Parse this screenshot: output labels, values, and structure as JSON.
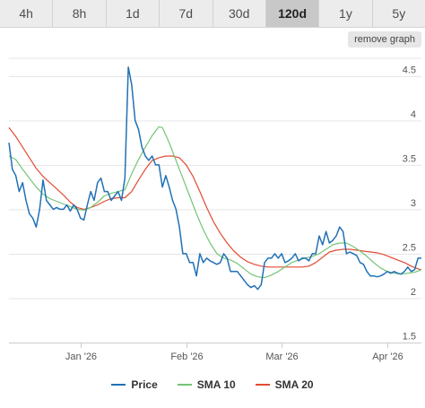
{
  "tabs": [
    {
      "label": "4h",
      "active": false
    },
    {
      "label": "8h",
      "active": false
    },
    {
      "label": "1d",
      "active": false
    },
    {
      "label": "7d",
      "active": false
    },
    {
      "label": "30d",
      "active": false
    },
    {
      "label": "120d",
      "active": true
    },
    {
      "label": "1y",
      "active": false
    },
    {
      "label": "5y",
      "active": false
    }
  ],
  "remove_graph_label": "remove graph",
  "chart_data": {
    "type": "line",
    "x_range": [
      "2025-12-11",
      "2026-04-11"
    ],
    "ylim": [
      1.5,
      4.7
    ],
    "y_ticks": [
      "1.5",
      "2",
      "2.5",
      "3",
      "3.5",
      "4",
      "4.5"
    ],
    "x_ticks": [
      {
        "label": "Jan '26",
        "date": "2026-01-01"
      },
      {
        "label": "Feb '26",
        "date": "2026-02-01"
      },
      {
        "label": "Mar '26",
        "date": "2026-03-01"
      },
      {
        "label": "Apr '26",
        "date": "2026-04-01"
      }
    ],
    "grid": true,
    "legend": "bottom",
    "series": [
      {
        "name": "Price",
        "color": "#2171b5",
        "points": [
          [
            "2025-12-11",
            3.75
          ],
          [
            "2025-12-12",
            3.45
          ],
          [
            "2025-12-13",
            3.38
          ],
          [
            "2025-12-14",
            3.2
          ],
          [
            "2025-12-15",
            3.3
          ],
          [
            "2025-12-16",
            3.1
          ],
          [
            "2025-12-17",
            2.95
          ],
          [
            "2025-12-18",
            2.9
          ],
          [
            "2025-12-19",
            2.8
          ],
          [
            "2025-12-20",
            3.0
          ],
          [
            "2025-12-21",
            3.33
          ],
          [
            "2025-12-22",
            3.1
          ],
          [
            "2025-12-23",
            3.05
          ],
          [
            "2025-12-24",
            3.0
          ],
          [
            "2025-12-25",
            3.02
          ],
          [
            "2025-12-26",
            3.0
          ],
          [
            "2025-12-27",
            3.0
          ],
          [
            "2025-12-28",
            3.05
          ],
          [
            "2025-12-29",
            2.98
          ],
          [
            "2025-12-30",
            3.05
          ],
          [
            "2025-12-31",
            3.0
          ],
          [
            "2026-01-01",
            2.9
          ],
          [
            "2026-01-02",
            2.88
          ],
          [
            "2026-01-03",
            3.05
          ],
          [
            "2026-01-04",
            3.2
          ],
          [
            "2026-01-05",
            3.1
          ],
          [
            "2026-01-06",
            3.3
          ],
          [
            "2026-01-07",
            3.35
          ],
          [
            "2026-01-08",
            3.2
          ],
          [
            "2026-01-09",
            3.2
          ],
          [
            "2026-01-10",
            3.1
          ],
          [
            "2026-01-11",
            3.15
          ],
          [
            "2026-01-12",
            3.2
          ],
          [
            "2026-01-13",
            3.1
          ],
          [
            "2026-01-14",
            3.35
          ],
          [
            "2026-01-15",
            4.6
          ],
          [
            "2026-01-16",
            4.4
          ],
          [
            "2026-01-17",
            4.0
          ],
          [
            "2026-01-18",
            3.9
          ],
          [
            "2026-01-19",
            3.7
          ],
          [
            "2026-01-20",
            3.6
          ],
          [
            "2026-01-21",
            3.55
          ],
          [
            "2026-01-22",
            3.6
          ],
          [
            "2026-01-23",
            3.5
          ],
          [
            "2026-01-24",
            3.5
          ],
          [
            "2026-01-25",
            3.25
          ],
          [
            "2026-01-26",
            3.38
          ],
          [
            "2026-01-27",
            3.25
          ],
          [
            "2026-01-28",
            3.1
          ],
          [
            "2026-01-29",
            3.0
          ],
          [
            "2026-01-30",
            2.8
          ],
          [
            "2026-01-31",
            2.5
          ],
          [
            "2026-02-01",
            2.5
          ],
          [
            "2026-02-02",
            2.4
          ],
          [
            "2026-02-03",
            2.4
          ],
          [
            "2026-02-04",
            2.25
          ],
          [
            "2026-02-05",
            2.5
          ],
          [
            "2026-02-06",
            2.4
          ],
          [
            "2026-02-07",
            2.45
          ],
          [
            "2026-02-08",
            2.42
          ],
          [
            "2026-02-09",
            2.4
          ],
          [
            "2026-02-10",
            2.38
          ],
          [
            "2026-02-11",
            2.4
          ],
          [
            "2026-02-12",
            2.5
          ],
          [
            "2026-02-13",
            2.45
          ],
          [
            "2026-02-14",
            2.3
          ],
          [
            "2026-02-15",
            2.3
          ],
          [
            "2026-02-16",
            2.3
          ],
          [
            "2026-02-17",
            2.25
          ],
          [
            "2026-02-18",
            2.2
          ],
          [
            "2026-02-19",
            2.15
          ],
          [
            "2026-02-20",
            2.12
          ],
          [
            "2026-02-21",
            2.14
          ],
          [
            "2026-02-22",
            2.1
          ],
          [
            "2026-02-23",
            2.15
          ],
          [
            "2026-02-24",
            2.4
          ],
          [
            "2026-02-25",
            2.45
          ],
          [
            "2026-02-26",
            2.45
          ],
          [
            "2026-02-27",
            2.5
          ],
          [
            "2026-02-28",
            2.45
          ],
          [
            "2026-03-01",
            2.5
          ],
          [
            "2026-03-02",
            2.4
          ],
          [
            "2026-03-03",
            2.42
          ],
          [
            "2026-03-04",
            2.45
          ],
          [
            "2026-03-05",
            2.5
          ],
          [
            "2026-03-06",
            2.42
          ],
          [
            "2026-03-07",
            2.45
          ],
          [
            "2026-03-08",
            2.45
          ],
          [
            "2026-03-09",
            2.42
          ],
          [
            "2026-03-10",
            2.5
          ],
          [
            "2026-03-11",
            2.5
          ],
          [
            "2026-03-12",
            2.7
          ],
          [
            "2026-03-13",
            2.6
          ],
          [
            "2026-03-14",
            2.75
          ],
          [
            "2026-03-15",
            2.62
          ],
          [
            "2026-03-16",
            2.65
          ],
          [
            "2026-03-17",
            2.7
          ],
          [
            "2026-03-18",
            2.8
          ],
          [
            "2026-03-19",
            2.75
          ],
          [
            "2026-03-20",
            2.5
          ],
          [
            "2026-03-21",
            2.52
          ],
          [
            "2026-03-22",
            2.5
          ],
          [
            "2026-03-23",
            2.48
          ],
          [
            "2026-03-24",
            2.4
          ],
          [
            "2026-03-25",
            2.38
          ],
          [
            "2026-03-26",
            2.3
          ],
          [
            "2026-03-27",
            2.25
          ],
          [
            "2026-03-28",
            2.25
          ],
          [
            "2026-03-29",
            2.24
          ],
          [
            "2026-03-30",
            2.25
          ],
          [
            "2026-03-31",
            2.27
          ],
          [
            "2026-04-01",
            2.3
          ],
          [
            "2026-04-02",
            2.28
          ],
          [
            "2026-04-03",
            2.3
          ],
          [
            "2026-04-04",
            2.28
          ],
          [
            "2026-04-05",
            2.27
          ],
          [
            "2026-04-06",
            2.3
          ],
          [
            "2026-04-07",
            2.35
          ],
          [
            "2026-04-08",
            2.3
          ],
          [
            "2026-04-09",
            2.32
          ],
          [
            "2026-04-10",
            2.45
          ],
          [
            "2026-04-11",
            2.45
          ]
        ]
      },
      {
        "name": "SMA 10",
        "color": "#74c476",
        "points": [
          [
            "2025-12-11",
            3.6
          ],
          [
            "2025-12-13",
            3.56
          ],
          [
            "2025-12-15",
            3.45
          ],
          [
            "2025-12-17",
            3.35
          ],
          [
            "2025-12-19",
            3.25
          ],
          [
            "2025-12-21",
            3.17
          ],
          [
            "2025-12-23",
            3.12
          ],
          [
            "2025-12-25",
            3.09
          ],
          [
            "2025-12-27",
            3.06
          ],
          [
            "2025-12-29",
            3.03
          ],
          [
            "2025-12-31",
            3.0
          ],
          [
            "2026-01-02",
            2.99
          ],
          [
            "2026-01-04",
            3.02
          ],
          [
            "2026-01-06",
            3.08
          ],
          [
            "2026-01-08",
            3.15
          ],
          [
            "2026-01-10",
            3.18
          ],
          [
            "2026-01-12",
            3.2
          ],
          [
            "2026-01-14",
            3.22
          ],
          [
            "2026-01-16",
            3.4
          ],
          [
            "2026-01-18",
            3.56
          ],
          [
            "2026-01-20",
            3.7
          ],
          [
            "2026-01-22",
            3.83
          ],
          [
            "2026-01-24",
            3.93
          ],
          [
            "2026-01-25",
            3.92
          ],
          [
            "2026-01-27",
            3.75
          ],
          [
            "2026-01-29",
            3.55
          ],
          [
            "2026-01-31",
            3.35
          ],
          [
            "2026-02-02",
            3.15
          ],
          [
            "2026-02-04",
            2.95
          ],
          [
            "2026-02-06",
            2.77
          ],
          [
            "2026-02-08",
            2.62
          ],
          [
            "2026-02-10",
            2.5
          ],
          [
            "2026-02-12",
            2.45
          ],
          [
            "2026-02-14",
            2.43
          ],
          [
            "2026-02-16",
            2.39
          ],
          [
            "2026-02-18",
            2.33
          ],
          [
            "2026-02-20",
            2.27
          ],
          [
            "2026-02-22",
            2.24
          ],
          [
            "2026-02-24",
            2.23
          ],
          [
            "2026-02-26",
            2.26
          ],
          [
            "2026-02-28",
            2.3
          ],
          [
            "2026-03-02",
            2.35
          ],
          [
            "2026-03-04",
            2.4
          ],
          [
            "2026-03-06",
            2.43
          ],
          [
            "2026-03-08",
            2.45
          ],
          [
            "2026-03-10",
            2.47
          ],
          [
            "2026-03-12",
            2.5
          ],
          [
            "2026-03-14",
            2.55
          ],
          [
            "2026-03-16",
            2.6
          ],
          [
            "2026-03-18",
            2.62
          ],
          [
            "2026-03-20",
            2.62
          ],
          [
            "2026-03-22",
            2.58
          ],
          [
            "2026-03-24",
            2.53
          ],
          [
            "2026-03-26",
            2.47
          ],
          [
            "2026-03-28",
            2.4
          ],
          [
            "2026-03-30",
            2.34
          ],
          [
            "2026-04-01",
            2.3
          ],
          [
            "2026-04-03",
            2.28
          ],
          [
            "2026-04-05",
            2.27
          ],
          [
            "2026-04-07",
            2.28
          ],
          [
            "2026-04-09",
            2.29
          ],
          [
            "2026-04-11",
            2.32
          ]
        ]
      },
      {
        "name": "SMA 20",
        "color": "#e34a33",
        "points": [
          [
            "2025-12-11",
            3.92
          ],
          [
            "2025-12-13",
            3.82
          ],
          [
            "2025-12-15",
            3.7
          ],
          [
            "2025-12-17",
            3.58
          ],
          [
            "2025-12-19",
            3.46
          ],
          [
            "2025-12-21",
            3.37
          ],
          [
            "2025-12-23",
            3.3
          ],
          [
            "2025-12-25",
            3.23
          ],
          [
            "2025-12-27",
            3.16
          ],
          [
            "2025-12-29",
            3.08
          ],
          [
            "2025-12-31",
            3.02
          ],
          [
            "2026-01-02",
            3.0
          ],
          [
            "2026-01-04",
            3.02
          ],
          [
            "2026-01-06",
            3.05
          ],
          [
            "2026-01-08",
            3.09
          ],
          [
            "2026-01-10",
            3.12
          ],
          [
            "2026-01-12",
            3.13
          ],
          [
            "2026-01-14",
            3.13
          ],
          [
            "2026-01-16",
            3.2
          ],
          [
            "2026-01-18",
            3.33
          ],
          [
            "2026-01-20",
            3.45
          ],
          [
            "2026-01-22",
            3.55
          ],
          [
            "2026-01-24",
            3.58
          ],
          [
            "2026-01-26",
            3.6
          ],
          [
            "2026-01-28",
            3.6
          ],
          [
            "2026-01-30",
            3.58
          ],
          [
            "2026-02-01",
            3.5
          ],
          [
            "2026-02-03",
            3.37
          ],
          [
            "2026-02-05",
            3.2
          ],
          [
            "2026-02-07",
            3.02
          ],
          [
            "2026-02-09",
            2.86
          ],
          [
            "2026-02-11",
            2.73
          ],
          [
            "2026-02-13",
            2.62
          ],
          [
            "2026-02-15",
            2.53
          ],
          [
            "2026-02-17",
            2.46
          ],
          [
            "2026-02-19",
            2.41
          ],
          [
            "2026-02-21",
            2.38
          ],
          [
            "2026-02-23",
            2.36
          ],
          [
            "2026-02-25",
            2.35
          ],
          [
            "2026-02-27",
            2.35
          ],
          [
            "2026-03-01",
            2.35
          ],
          [
            "2026-03-03",
            2.35
          ],
          [
            "2026-03-05",
            2.35
          ],
          [
            "2026-03-07",
            2.35
          ],
          [
            "2026-03-09",
            2.36
          ],
          [
            "2026-03-11",
            2.4
          ],
          [
            "2026-03-13",
            2.46
          ],
          [
            "2026-03-15",
            2.52
          ],
          [
            "2026-03-17",
            2.54
          ],
          [
            "2026-03-19",
            2.55
          ],
          [
            "2026-03-21",
            2.55
          ],
          [
            "2026-03-23",
            2.54
          ],
          [
            "2026-03-25",
            2.53
          ],
          [
            "2026-03-27",
            2.52
          ],
          [
            "2026-03-29",
            2.51
          ],
          [
            "2026-03-31",
            2.49
          ],
          [
            "2026-04-02",
            2.46
          ],
          [
            "2026-04-04",
            2.43
          ],
          [
            "2026-04-06",
            2.4
          ],
          [
            "2026-04-08",
            2.36
          ],
          [
            "2026-04-10",
            2.33
          ],
          [
            "2026-04-11",
            2.32
          ]
        ]
      }
    ]
  }
}
